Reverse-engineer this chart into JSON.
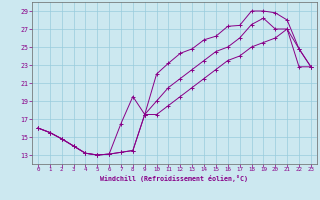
{
  "xlabel": "Windchill (Refroidissement éolien,°C)",
  "bg_color": "#cce8f0",
  "line_color": "#880088",
  "grid_color": "#99ccdd",
  "xlim": [
    -0.5,
    23.5
  ],
  "ylim": [
    12.0,
    30.0
  ],
  "xticks": [
    0,
    1,
    2,
    3,
    4,
    5,
    6,
    7,
    8,
    9,
    10,
    11,
    12,
    13,
    14,
    15,
    16,
    17,
    18,
    19,
    20,
    21,
    22,
    23
  ],
  "yticks": [
    13,
    15,
    17,
    19,
    21,
    23,
    25,
    27,
    29
  ],
  "upper_x": [
    0,
    1,
    2,
    3,
    4,
    5,
    6,
    7,
    8,
    9,
    10,
    11,
    12,
    13,
    14,
    15,
    16,
    17,
    18,
    19,
    20,
    21,
    22,
    23
  ],
  "upper_y": [
    16.0,
    15.5,
    14.8,
    14.0,
    13.2,
    13.0,
    13.1,
    16.5,
    19.5,
    17.5,
    22.0,
    23.2,
    24.3,
    24.8,
    25.8,
    26.2,
    27.3,
    27.4,
    29.0,
    29.0,
    28.8,
    28.0,
    24.8,
    22.8
  ],
  "middle_x": [
    0,
    1,
    2,
    3,
    4,
    5,
    6,
    7,
    8,
    9,
    10,
    11,
    12,
    13,
    14,
    15,
    16,
    17,
    18,
    19,
    20,
    21,
    22,
    23
  ],
  "middle_y": [
    16.0,
    15.5,
    14.8,
    14.0,
    13.2,
    13.0,
    13.1,
    13.3,
    13.5,
    17.5,
    19.0,
    20.5,
    21.5,
    22.5,
    23.5,
    24.5,
    25.0,
    26.0,
    27.5,
    28.2,
    27.0,
    27.0,
    24.8,
    22.8
  ],
  "lower_x": [
    0,
    1,
    2,
    3,
    4,
    5,
    6,
    7,
    8,
    9,
    10,
    11,
    12,
    13,
    14,
    15,
    16,
    17,
    18,
    19,
    20,
    21,
    22,
    23
  ],
  "lower_y": [
    16.0,
    15.5,
    14.8,
    14.0,
    13.2,
    13.0,
    13.1,
    13.3,
    13.5,
    17.5,
    17.5,
    18.5,
    19.5,
    20.5,
    21.5,
    22.5,
    23.5,
    24.0,
    25.0,
    25.5,
    26.0,
    27.0,
    22.8,
    22.8
  ]
}
